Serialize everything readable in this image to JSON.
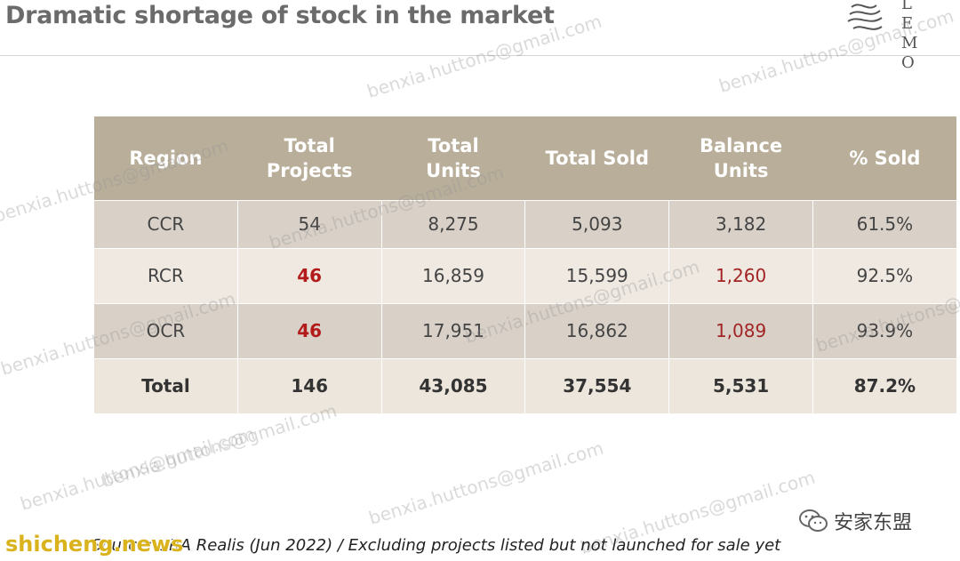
{
  "title": "Dramatic shortage of stock in the market",
  "logo": {
    "letters_top": "L E",
    "letters_bottom": "M O"
  },
  "table": {
    "headers": [
      "Region",
      "Total Projects",
      "Total Units",
      "Total Sold",
      "Balance Units",
      "% Sold"
    ],
    "rows": [
      [
        "CCR",
        "54",
        "8,275",
        "5,093",
        "3,182",
        "61.5%"
      ],
      [
        "RCR",
        "46",
        "16,859",
        "15,599",
        "1,260",
        "92.5%"
      ],
      [
        "OCR",
        "46",
        "17,951",
        "16,862",
        "1,089",
        "93.9%"
      ]
    ],
    "total": [
      "Total",
      "146",
      "43,085",
      "37,554",
      "5,531",
      "87.2%"
    ]
  },
  "source": "Source: URA Realis (Jun 2022) / Excluding projects listed but not launched for sale yet",
  "watermark": "benxia.huttons@gmail.com",
  "site_watermark": "shicheng.news",
  "wechat_label": "安家东盟",
  "colors": {
    "header_bg": "#b8ae9a",
    "highlight_red": "#b31b1b"
  }
}
